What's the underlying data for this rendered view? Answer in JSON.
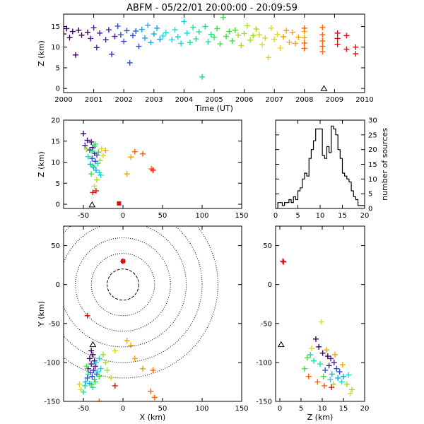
{
  "title": "ABFM - 05/22/01 20:00:00 - 20:09:59",
  "colors": {
    "axis": "#000000",
    "series_palette": [
      "#3b0066",
      "#4b1a9a",
      "#3050d0",
      "#18a8e8",
      "#19d8d8",
      "#18e0a0",
      "#40e040",
      "#a0e020",
      "#e0d820",
      "#ffa000",
      "#ff6000",
      "#e01010"
    ]
  },
  "chart_data": [
    {
      "id": "time-height",
      "type": "scatter",
      "xlabel": "Time (UT)",
      "ylabel": "Z (km)",
      "xlim": [
        2000,
        2010
      ],
      "ylim": [
        -1,
        18
      ],
      "xticks": [
        "2000",
        "2001",
        "2002",
        "2003",
        "2004",
        "2005",
        "2006",
        "2007",
        "2008",
        "2009",
        "2010"
      ],
      "yticks": [
        "0",
        "5",
        "10",
        "15"
      ],
      "marker": "plus",
      "color_by": "time",
      "points": [
        [
          2000.0,
          13.2
        ],
        [
          2000.1,
          14.5
        ],
        [
          2000.2,
          12.3
        ],
        [
          2000.3,
          13.8
        ],
        [
          2000.4,
          8.1
        ],
        [
          2000.5,
          14.1
        ],
        [
          2000.6,
          12.9
        ],
        [
          2000.8,
          13.6
        ],
        [
          2000.9,
          12.1
        ],
        [
          2001.0,
          14.7
        ],
        [
          2001.1,
          9.9
        ],
        [
          2001.2,
          13.4
        ],
        [
          2001.4,
          11.8
        ],
        [
          2001.5,
          14.2
        ],
        [
          2001.6,
          8.3
        ],
        [
          2001.7,
          12.6
        ],
        [
          2001.8,
          15.1
        ],
        [
          2001.9,
          13.0
        ],
        [
          2002.0,
          11.4
        ],
        [
          2002.1,
          14.0
        ],
        [
          2002.2,
          6.2
        ],
        [
          2002.3,
          12.8
        ],
        [
          2002.4,
          13.9
        ],
        [
          2002.5,
          10.2
        ],
        [
          2002.6,
          14.3
        ],
        [
          2002.7,
          12.2
        ],
        [
          2002.8,
          15.3
        ],
        [
          2002.9,
          11.1
        ],
        [
          2003.0,
          13.2
        ],
        [
          2003.1,
          14.6
        ],
        [
          2003.2,
          11.9
        ],
        [
          2003.3,
          12.7
        ],
        [
          2003.4,
          13.5
        ],
        [
          2003.6,
          11.8
        ],
        [
          2003.7,
          14.2
        ],
        [
          2003.8,
          12.5
        ],
        [
          2003.9,
          10.9
        ],
        [
          2004.0,
          16.2
        ],
        [
          2004.1,
          13.4
        ],
        [
          2004.2,
          11.1
        ],
        [
          2004.3,
          14.8
        ],
        [
          2004.4,
          12.0
        ],
        [
          2004.5,
          13.7
        ],
        [
          2004.6,
          2.8
        ],
        [
          2004.7,
          15.0
        ],
        [
          2004.8,
          11.3
        ],
        [
          2004.9,
          13.1
        ],
        [
          2005.0,
          12.4
        ],
        [
          2005.1,
          14.5
        ],
        [
          2005.2,
          10.8
        ],
        [
          2005.3,
          17.2
        ],
        [
          2005.4,
          12.6
        ],
        [
          2005.5,
          13.8
        ],
        [
          2005.6,
          11.5
        ],
        [
          2005.7,
          14.1
        ],
        [
          2005.8,
          12.9
        ],
        [
          2005.9,
          10.4
        ],
        [
          2006.0,
          13.3
        ],
        [
          2006.1,
          15.2
        ],
        [
          2006.2,
          11.7
        ],
        [
          2006.3,
          12.8
        ],
        [
          2006.4,
          14.4
        ],
        [
          2006.5,
          13.0
        ],
        [
          2006.6,
          10.6
        ],
        [
          2006.7,
          12.2
        ],
        [
          2006.8,
          7.5
        ],
        [
          2006.9,
          14.6
        ],
        [
          2007.0,
          11.9
        ],
        [
          2007.1,
          13.1
        ],
        [
          2007.2,
          9.8
        ],
        [
          2007.3,
          12.5
        ],
        [
          2007.4,
          14.0
        ],
        [
          2007.5,
          11.2
        ],
        [
          2007.6,
          13.6
        ],
        [
          2007.7,
          10.9
        ],
        [
          2007.8,
          12.4
        ],
        [
          2008.0,
          13.8
        ],
        [
          2008.0,
          12.3
        ],
        [
          2008.0,
          11.0
        ],
        [
          2008.0,
          9.7
        ],
        [
          2008.0,
          14.6
        ],
        [
          2008.6,
          13.0
        ],
        [
          2008.6,
          11.5
        ],
        [
          2008.6,
          10.2
        ],
        [
          2008.6,
          8.9
        ],
        [
          2008.6,
          14.8
        ],
        [
          2009.1,
          12.1
        ],
        [
          2009.1,
          13.4
        ],
        [
          2009.1,
          10.7
        ],
        [
          2009.4,
          9.5
        ],
        [
          2009.4,
          12.8
        ],
        [
          2009.7,
          8.4
        ],
        [
          2009.7,
          10.0
        ]
      ],
      "markers": [
        {
          "name": "station-marker",
          "x": 2008.65,
          "y": -0.2,
          "shape": "triangle"
        }
      ]
    },
    {
      "id": "x-z",
      "type": "scatter",
      "xlabel": "",
      "ylabel": "Z (km)",
      "xlim": [
        -75,
        150
      ],
      "ylim": [
        -1,
        20
      ],
      "xticks": [
        "-50",
        "0",
        "50",
        "100",
        "150"
      ],
      "yticks": [
        "0",
        "5",
        "10",
        "15",
        "20"
      ],
      "marker": "plus",
      "color_by": "time",
      "points": [
        [
          -50,
          16.8
        ],
        [
          -45,
          15.2
        ],
        [
          -40,
          14.8
        ],
        [
          -38,
          13.5
        ],
        [
          -42,
          12.9
        ],
        [
          -36,
          12.1
        ],
        [
          -48,
          14.0
        ],
        [
          -33,
          11.7
        ],
        [
          -39,
          10.9
        ],
        [
          -35,
          10.2
        ],
        [
          -41,
          9.5
        ],
        [
          -37,
          8.8
        ],
        [
          -34,
          8.1
        ],
        [
          -30,
          7.5
        ],
        [
          -28,
          6.9
        ],
        [
          -36,
          13.8
        ],
        [
          -44,
          11.3
        ],
        [
          -39,
          12.6
        ],
        [
          -32,
          9.7
        ],
        [
          -38,
          9.1
        ],
        [
          -35,
          14.3
        ],
        [
          -40,
          7.2
        ],
        [
          -31,
          12.4
        ],
        [
          -46,
          13.1
        ],
        [
          -29,
          10.4
        ],
        [
          -33,
          5.8
        ],
        [
          -36,
          4.3
        ],
        [
          -27,
          13.2
        ],
        [
          -25,
          11.6
        ],
        [
          -22,
          12.8
        ],
        [
          5,
          7.2
        ],
        [
          10,
          11.2
        ],
        [
          15,
          12.5
        ],
        [
          25,
          12.0
        ],
        [
          36,
          8.4
        ],
        [
          38,
          8.1
        ],
        [
          -38,
          2.8
        ],
        [
          -34,
          3.2
        ]
      ],
      "markers": [
        {
          "name": "station-marker",
          "x": -39,
          "y": -0.3,
          "shape": "triangle"
        },
        {
          "name": "offset-source",
          "x": -5,
          "y": 0.2,
          "shape": "square"
        }
      ]
    },
    {
      "id": "z-histogram",
      "type": "bar",
      "xlabel": "",
      "ylabel": "number of sources",
      "xlim": [
        0,
        20
      ],
      "ylim": [
        0,
        30
      ],
      "xticks": [
        "0",
        "5",
        "10",
        "15",
        "20"
      ],
      "yticks": [
        "0",
        "5",
        "10",
        "15",
        "20",
        "25",
        "30"
      ],
      "bin_width": 0.5,
      "values": [
        0,
        2,
        2,
        1,
        2,
        2,
        3,
        2,
        4,
        3,
        6,
        7,
        10,
        12,
        11,
        17,
        20,
        23,
        27,
        27,
        27,
        18,
        17,
        21,
        19,
        28,
        27,
        25,
        20,
        17,
        12,
        11,
        10,
        9,
        6,
        4,
        3,
        1,
        1,
        1
      ]
    },
    {
      "id": "x-y",
      "type": "scatter",
      "xlabel": "X (km)",
      "ylabel": "Y (km)",
      "xlim": [
        -75,
        150
      ],
      "ylim": [
        -150,
        75
      ],
      "xticks": [
        "-50",
        "0",
        "50",
        "100",
        "150"
      ],
      "yticks": [
        "-150",
        "-100",
        "-50",
        "0",
        "50"
      ],
      "range_rings_km": [
        20,
        40,
        60,
        80,
        100,
        120
      ],
      "marker": "plus",
      "color_by": "time",
      "points": [
        [
          -40,
          -85
        ],
        [
          -38,
          -90
        ],
        [
          -42,
          -95
        ],
        [
          -36,
          -98
        ],
        [
          -40,
          -102
        ],
        [
          -35,
          -105
        ],
        [
          -44,
          -108
        ],
        [
          -37,
          -110
        ],
        [
          -41,
          -113
        ],
        [
          -33,
          -115
        ],
        [
          -39,
          -118
        ],
        [
          -45,
          -120
        ],
        [
          -36,
          -122
        ],
        [
          -47,
          -125
        ],
        [
          -42,
          -127
        ],
        [
          -34,
          -100
        ],
        [
          -30,
          -95
        ],
        [
          -28,
          -108
        ],
        [
          -32,
          -112
        ],
        [
          -48,
          -130
        ],
        [
          -50,
          -138
        ],
        [
          -38,
          -132
        ],
        [
          -44,
          -115
        ],
        [
          -40,
          -128
        ],
        [
          -35,
          -125
        ],
        [
          -30,
          -118
        ],
        [
          -46,
          -105
        ],
        [
          -25,
          -90
        ],
        [
          -22,
          -100
        ],
        [
          -20,
          -110
        ],
        [
          -55,
          -128
        ],
        [
          -53,
          -135
        ],
        [
          -15,
          -120
        ],
        [
          -10,
          -85
        ],
        [
          5,
          -72
        ],
        [
          10,
          -78
        ],
        [
          15,
          -95
        ],
        [
          25,
          -108
        ],
        [
          38,
          -110
        ],
        [
          35,
          -137
        ],
        [
          40,
          -145
        ],
        [
          -30,
          -150
        ],
        [
          -45,
          -40
        ],
        [
          -10,
          -130
        ],
        [
          0,
          30
        ]
      ],
      "markers": [
        {
          "name": "station-marker",
          "x": -38,
          "y": -78,
          "shape": "triangle"
        },
        {
          "name": "offset-source",
          "x": 0,
          "y": 30,
          "shape": "square"
        }
      ]
    },
    {
      "id": "z-y",
      "type": "scatter",
      "xlabel": "Z (km)",
      "ylabel": "",
      "xlim": [
        -1,
        20
      ],
      "ylim": [
        -150,
        75
      ],
      "xticks": [
        "0",
        "5",
        "10",
        "15",
        "20"
      ],
      "yticks": [
        "-150",
        "-100",
        "-50",
        "0",
        "50"
      ],
      "marker": "plus",
      "color_by": "time",
      "points": [
        [
          8.5,
          -70
        ],
        [
          9.2,
          -80
        ],
        [
          10.1,
          -88
        ],
        [
          11.3,
          -92
        ],
        [
          12.0,
          -95
        ],
        [
          12.8,
          -100
        ],
        [
          11.6,
          -104
        ],
        [
          13.4,
          -108
        ],
        [
          10.7,
          -110
        ],
        [
          14.1,
          -112
        ],
        [
          12.3,
          -115
        ],
        [
          15.0,
          -118
        ],
        [
          13.7,
          -120
        ],
        [
          11.9,
          -122
        ],
        [
          16.2,
          -116
        ],
        [
          14.6,
          -125
        ],
        [
          9.5,
          -102
        ],
        [
          8.0,
          -98
        ],
        [
          7.2,
          -90
        ],
        [
          6.5,
          -94
        ],
        [
          5.8,
          -108
        ],
        [
          10.3,
          -118
        ],
        [
          12.6,
          -128
        ],
        [
          15.8,
          -128
        ],
        [
          17.0,
          -135
        ],
        [
          16.6,
          -140
        ],
        [
          9.8,
          -48
        ],
        [
          7.5,
          -82
        ],
        [
          13.0,
          -90
        ],
        [
          11.0,
          -84
        ],
        [
          14.8,
          -103
        ],
        [
          10.5,
          -130
        ],
        [
          8.9,
          -125
        ],
        [
          6.8,
          -118
        ],
        [
          12.2,
          -132
        ],
        [
          0.7,
          30
        ],
        [
          0.9,
          29
        ]
      ],
      "markers": [
        {
          "name": "station-marker",
          "x": 0.3,
          "y": -78,
          "shape": "triangle"
        }
      ]
    }
  ]
}
